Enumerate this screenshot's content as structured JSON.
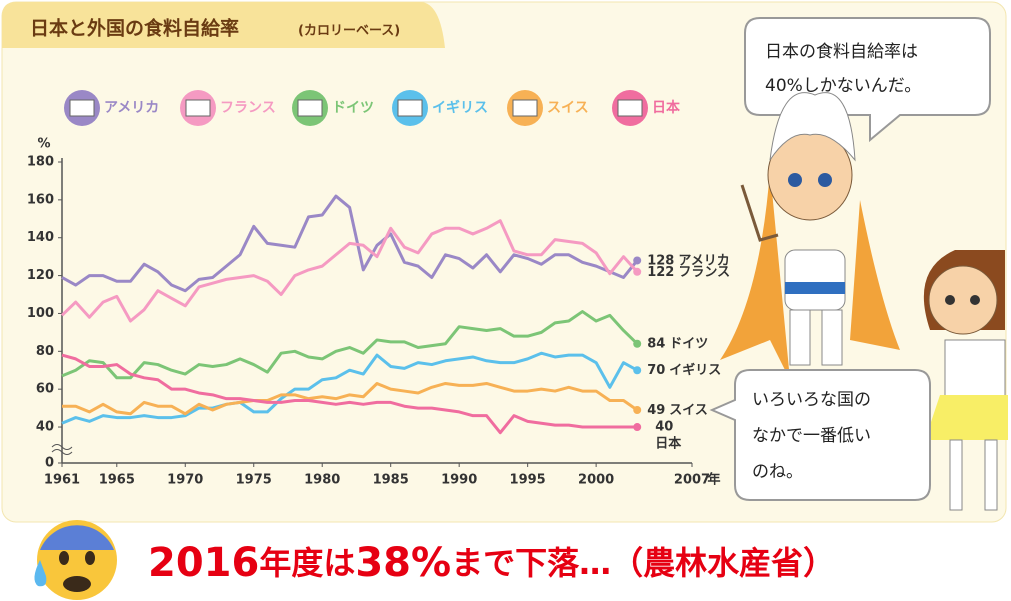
{
  "chart_data": {
    "type": "line",
    "title": "日本と外国の食料自給率",
    "subtitle": "(カロリーベース)",
    "y_label": "%",
    "x_label": "年",
    "x": [
      1961,
      1962,
      1963,
      1964,
      1965,
      1966,
      1967,
      1968,
      1969,
      1970,
      1971,
      1972,
      1973,
      1974,
      1975,
      1976,
      1977,
      1978,
      1979,
      1980,
      1981,
      1982,
      1983,
      1984,
      1985,
      1986,
      1987,
      1988,
      1989,
      1990,
      1991,
      1992,
      1993,
      1994,
      1995,
      1996,
      1997,
      1998,
      1999,
      2000,
      2001,
      2002,
      2003
    ],
    "xlim": [
      1961,
      2007
    ],
    "xticks": [
      1961,
      1965,
      1970,
      1975,
      1980,
      1985,
      1990,
      1995,
      2000,
      2007
    ],
    "ylim": [
      0,
      180
    ],
    "yticks": [
      0,
      40,
      60,
      80,
      100,
      120,
      140,
      160,
      180
    ],
    "axis_break": [
      0,
      21
    ],
    "grid": false,
    "series": [
      {
        "name": "アメリカ",
        "color": "#9a88c6",
        "values": [
          119,
          115,
          120,
          120,
          117,
          117,
          126,
          122,
          115,
          112,
          118,
          119,
          125,
          131,
          146,
          137,
          136,
          135,
          151,
          152,
          162,
          156,
          123,
          136,
          142,
          127,
          125,
          119,
          131,
          129,
          124,
          131,
          122,
          131,
          129,
          126,
          131,
          131,
          127,
          125,
          122,
          119,
          128
        ]
      },
      {
        "name": "フランス",
        "color": "#f59ac2",
        "values": [
          99,
          106,
          98,
          106,
          109,
          96,
          102,
          112,
          108,
          104,
          114,
          116,
          118,
          119,
          120,
          117,
          110,
          120,
          123,
          125,
          131,
          137,
          136,
          130,
          145,
          135,
          132,
          142,
          145,
          145,
          142,
          145,
          149,
          133,
          131,
          131,
          139,
          138,
          137,
          132,
          121,
          130,
          122
        ]
      },
      {
        "name": "ドイツ",
        "color": "#7cc576",
        "values": [
          67,
          70,
          75,
          74,
          66,
          66,
          74,
          73,
          70,
          68,
          73,
          72,
          73,
          76,
          73,
          69,
          79,
          80,
          77,
          76,
          80,
          82,
          79,
          86,
          85,
          85,
          82,
          83,
          84,
          93,
          92,
          91,
          92,
          88,
          88,
          90,
          95,
          96,
          101,
          96,
          99,
          91,
          84
        ]
      },
      {
        "name": "イギリス",
        "color": "#5bc0eb",
        "values": [
          42,
          45,
          43,
          46,
          45,
          45,
          46,
          45,
          45,
          46,
          50,
          50,
          52,
          53,
          48,
          48,
          55,
          60,
          60,
          65,
          66,
          70,
          68,
          78,
          72,
          71,
          74,
          73,
          75,
          76,
          77,
          75,
          74,
          74,
          76,
          79,
          77,
          78,
          78,
          74,
          61,
          74,
          70
        ]
      },
      {
        "name": "スイス",
        "color": "#f7b155",
        "values": [
          51,
          51,
          48,
          52,
          48,
          47,
          53,
          51,
          51,
          47,
          52,
          49,
          52,
          53,
          54,
          54,
          57,
          57,
          55,
          56,
          55,
          57,
          56,
          63,
          60,
          59,
          58,
          61,
          63,
          62,
          62,
          63,
          61,
          59,
          59,
          60,
          59,
          61,
          59,
          59,
          54,
          54,
          49
        ]
      },
      {
        "name": "日本",
        "color": "#f06d9f",
        "values": [
          78,
          76,
          72,
          72,
          73,
          68,
          66,
          65,
          60,
          60,
          58,
          57,
          55,
          55,
          54,
          53,
          53,
          54,
          54,
          53,
          52,
          53,
          52,
          53,
          53,
          51,
          50,
          50,
          49,
          48,
          46,
          46,
          37,
          46,
          43,
          42,
          41,
          41,
          40,
          40,
          40,
          40,
          40
        ]
      }
    ]
  },
  "bubble_top": {
    "lines": [
      "日本の食料自給率は",
      "40%しかないんだ。"
    ]
  },
  "bubble_bottom": {
    "lines": [
      "いろいろな国の",
      "なかで一番低い",
      "のね。"
    ]
  },
  "banner": {
    "parts": [
      "2016",
      "年度は",
      "38%",
      "まで下落…（農林水産省）"
    ]
  }
}
